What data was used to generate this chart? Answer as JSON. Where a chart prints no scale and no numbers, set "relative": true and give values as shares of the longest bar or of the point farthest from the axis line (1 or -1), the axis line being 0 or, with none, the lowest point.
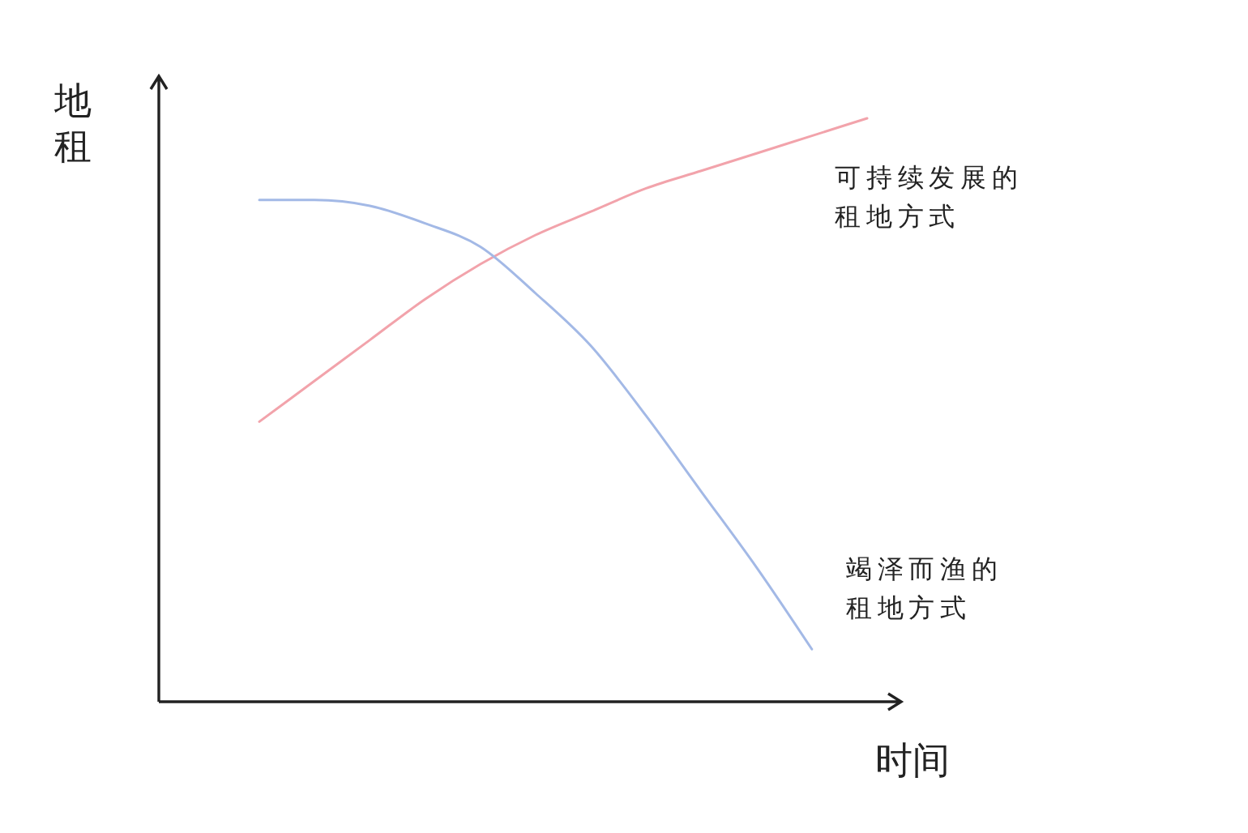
{
  "chart_data": {
    "type": "line",
    "relative": true,
    "xlabel": "时间",
    "ylabel": "地租",
    "categories": [
      null,
      null,
      null,
      null,
      null,
      null,
      null,
      null,
      null,
      null,
      null,
      null
    ],
    "series": [
      {
        "name": "可持续发展的租地方式",
        "color": "#f2a3ab",
        "values": [
          0.48,
          0.55,
          0.62,
          0.69,
          0.75,
          0.8,
          0.84,
          0.88,
          0.91,
          0.94,
          0.97,
          1
        ]
      },
      {
        "name": "竭泽而渔的租地方式",
        "color": "#a3b9e6",
        "values": [
          0.86,
          0.86,
          0.85,
          0.82,
          0.78,
          0.7,
          0.61,
          0.49,
          0.36,
          0.23,
          0.09,
          null
        ]
      }
    ]
  }
}
